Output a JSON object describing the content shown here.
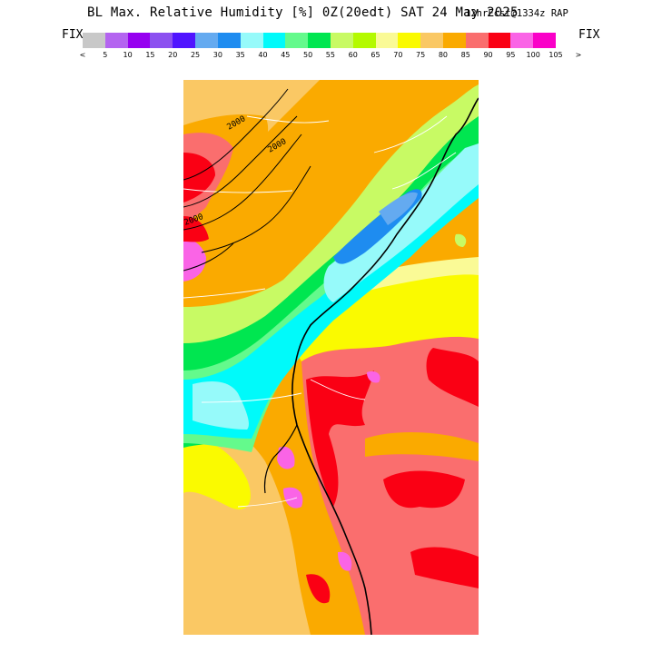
{
  "title": "BL Max. Relative Humidity [%] 0Z(20edt) SAT 24 May 2025",
  "subtitle": "12hrFcst@1334z RAP",
  "fix_left": "FIX",
  "fix_right": "FIX",
  "legend": {
    "colors": [
      "#c8c8c8",
      "#b464f0",
      "#9600f0",
      "#8c50f0",
      "#5014ff",
      "#64aaf0",
      "#1e8cf0",
      "#96fafa",
      "#00fafa",
      "#64fa8c",
      "#00e650",
      "#c8fa64",
      "#b4fa00",
      "#fafa96",
      "#fafa00",
      "#fac864",
      "#faaa00",
      "#fa6e6e",
      "#fa0014",
      "#fa64e6",
      "#fa00c8"
    ],
    "ticks": [
      "<",
      "5",
      "10",
      "15",
      "20",
      "25",
      "30",
      "35",
      "40",
      "45",
      "50",
      "55",
      "60",
      "65",
      "70",
      "75",
      "80",
      "85",
      "90",
      "95",
      "100",
      "105",
      ">"
    ]
  },
  "contour_labels": [
    "2000",
    "2000",
    "2000"
  ]
}
